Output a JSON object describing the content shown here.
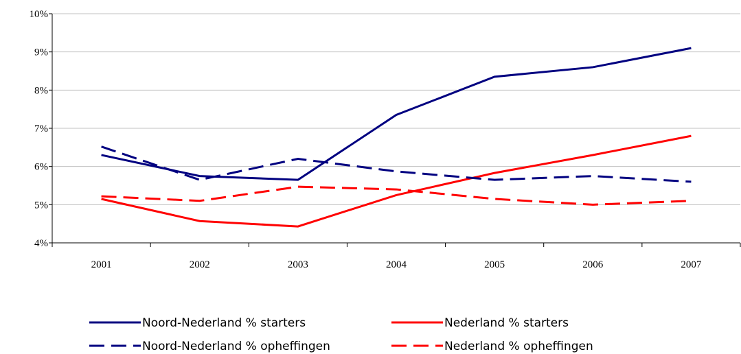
{
  "chart_data": {
    "type": "line",
    "categories": [
      "2001",
      "2002",
      "2003",
      "2004",
      "2005",
      "2006",
      "2007"
    ],
    "series": [
      {
        "name": "Noord-Nederland % starters",
        "color": "#000080",
        "dashed": false,
        "values": [
          6.3,
          5.75,
          5.65,
          7.35,
          8.35,
          8.6,
          9.1
        ]
      },
      {
        "name": "Nederland % starters",
        "color": "#ff0000",
        "dashed": false,
        "values": [
          5.15,
          4.57,
          4.43,
          5.25,
          5.83,
          6.3,
          6.8
        ]
      },
      {
        "name": "Noord-Nederland % opheffingen",
        "color": "#000080",
        "dashed": true,
        "values": [
          6.52,
          5.65,
          6.2,
          5.87,
          5.65,
          5.75,
          5.6
        ]
      },
      {
        "name": "Nederland % opheffingen",
        "color": "#ff0000",
        "dashed": true,
        "values": [
          5.22,
          5.1,
          5.47,
          5.4,
          5.15,
          5.0,
          5.1
        ]
      }
    ],
    "ylim": [
      4,
      10
    ],
    "yticks": [
      {
        "value": 4,
        "label": "4%"
      },
      {
        "value": 5,
        "label": "5%"
      },
      {
        "value": 6,
        "label": "6%"
      },
      {
        "value": 7,
        "label": "7%"
      },
      {
        "value": 8,
        "label": "8%"
      },
      {
        "value": 9,
        "label": "9%"
      },
      {
        "value": 10,
        "label": "10%"
      }
    ],
    "grid": true
  }
}
